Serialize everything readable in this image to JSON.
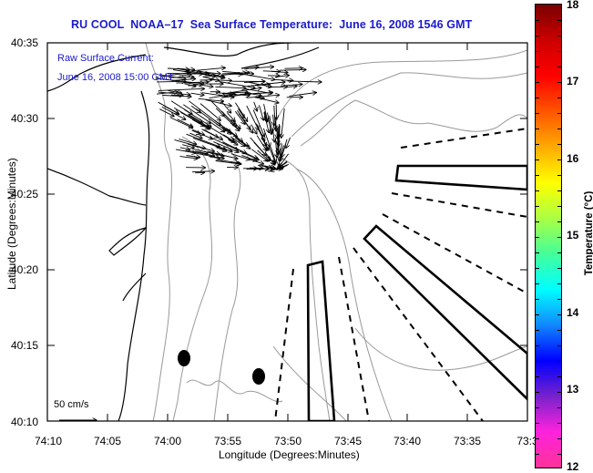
{
  "title": "RU COOL  NOAA–17  Sea Surface Temperature:  June 16, 2008 1546 GMT",
  "annotation": {
    "line1": "Raw Surface Current:",
    "line2": "June 16, 2008 15:00 GMT"
  },
  "scale_arrow_label": "50 cm/s",
  "axes": {
    "xlabel": "Longitude (Degrees:Minutes)",
    "ylabel": "Latitude (Degrees:Minutes)",
    "xticks": [
      "74:10",
      "74:05",
      "74:00",
      "73:55",
      "73:50",
      "73:45",
      "73:40",
      "73:35",
      "73:3"
    ],
    "yticks": [
      "40:35",
      "40:30",
      "40:25",
      "40:20",
      "40:15",
      "40:10"
    ]
  },
  "colorbar": {
    "title": "Temperature (°C)",
    "min": 12,
    "max": 18,
    "ticks": [
      "18",
      "17",
      "16",
      "15",
      "14",
      "13",
      "12"
    ],
    "stops": [
      "#ff3399",
      "#ff22dd",
      "#7722cc",
      "#0000ff",
      "#1188ff",
      "#00ffff",
      "#44ff99",
      "#aaff44",
      "#ffff00",
      "#ffaa00",
      "#ff5500",
      "#ff0000",
      "#cc0000",
      "#7a0000"
    ]
  },
  "colors": {
    "title": "#1a1acc",
    "coast": "#000000",
    "bathymetry": "#999999",
    "vectors": "#000000"
  },
  "chart_data": {
    "type": "map",
    "title": "RU COOL  NOAA-17  Sea Surface Temperature:  June 16, 2008 1546 GMT",
    "xlabel": "Longitude (Degrees:Minutes)",
    "ylabel": "Latitude (Degrees:Minutes)",
    "xlim_deg_min": [
      "74:10",
      "73:30"
    ],
    "ylim_deg_min": [
      "40:10",
      "40:35"
    ],
    "colorbar_range_C": [
      12,
      18
    ],
    "overlays": [
      {
        "name": "Raw Surface Current",
        "time": "June 16, 2008 15:00 GMT",
        "scale": "50 cm/s"
      },
      {
        "name": "restricted-zone-polygons",
        "count": 3
      },
      {
        "name": "dashed-lanes",
        "count": 7
      },
      {
        "name": "filled-markers",
        "count": 2
      }
    ]
  }
}
